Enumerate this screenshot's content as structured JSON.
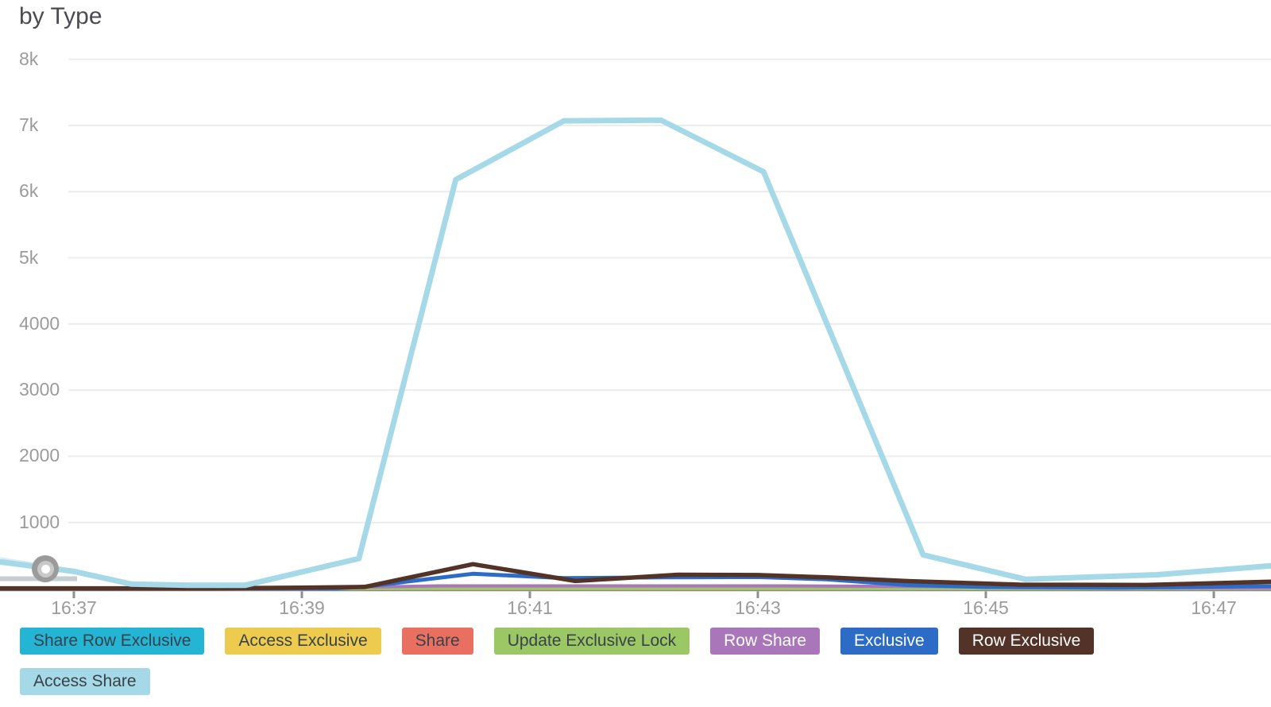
{
  "title": "by Type",
  "ui": {
    "grid_color": "#ececec",
    "axis_color": "#85878a",
    "tick_color": "#8f8f8f",
    "label_color": "#9b9b9b",
    "title_color": "#4a4a52",
    "marker_ring_color": "#9b9b9b",
    "marker_mid_color": "#c9c9c9",
    "marker_center_color": "#ffffff",
    "lead_in_line": "#d3ecf5",
    "lead_in_track": "#c7ced2"
  },
  "legend": {
    "rows": [
      [
        {
          "label": "Share Row Exclusive",
          "slug": "share-row-exclusive",
          "bg": "#24b4d4",
          "fg": "#39424a"
        },
        {
          "label": "Access Exclusive",
          "slug": "access-exclusive",
          "bg": "#edcb4f",
          "fg": "#39424a"
        },
        {
          "label": "Share",
          "slug": "share",
          "bg": "#e97061",
          "fg": "#39424a"
        },
        {
          "label": "Update Exclusive Lock",
          "slug": "update-exclusive-lock",
          "bg": "#9cc765",
          "fg": "#39424a"
        },
        {
          "label": "Row Share",
          "slug": "row-share",
          "bg": "#a977b9",
          "fg": "#ffffff"
        },
        {
          "label": "Exclusive",
          "slug": "exclusive",
          "bg": "#2c6cc6",
          "fg": "#ffffff"
        },
        {
          "label": "Row Exclusive",
          "slug": "row-exclusive",
          "bg": "#533327",
          "fg": "#ffffff"
        }
      ],
      [
        {
          "label": "Access Share",
          "slug": "access-share",
          "bg": "#a6d9e8",
          "fg": "#39424a"
        }
      ]
    ]
  },
  "chart_data": {
    "type": "line",
    "title": "by Type",
    "grid": true,
    "legend_position": "bottom",
    "x_axis": {
      "unit": "time (HH:MM)",
      "range": [
        "16:36:20",
        "16:47:30"
      ],
      "ticks": [
        {
          "label": "16:37",
          "minute": 37
        },
        {
          "label": "16:39",
          "minute": 39
        },
        {
          "label": "16:41",
          "minute": 41
        },
        {
          "label": "16:43",
          "minute": 43
        },
        {
          "label": "16:45",
          "minute": 45
        },
        {
          "label": "16:47",
          "minute": 47
        }
      ]
    },
    "y_axis": {
      "range": [
        0,
        8000
      ],
      "ticks": [
        {
          "label": "8k",
          "value": 8000
        },
        {
          "label": "7k",
          "value": 7000
        },
        {
          "label": "6k",
          "value": 6000
        },
        {
          "label": "5k",
          "value": 5000
        },
        {
          "label": "4000",
          "value": 4000
        },
        {
          "label": "3000",
          "value": 3000
        },
        {
          "label": "2000",
          "value": 2000
        },
        {
          "label": "1000",
          "value": 1000
        }
      ]
    },
    "x_point_format": "decimal minutes after 16:00 (e.g. 40.5 = 16:40:30)",
    "series": [
      {
        "name": "Share Row Exclusive",
        "slug": "share-row-exclusive",
        "color": "#24b4d4",
        "stroke": 4,
        "points": [
          [
            36.35,
            3
          ],
          [
            47.5,
            3
          ]
        ]
      },
      {
        "name": "Access Exclusive",
        "slug": "access-exclusive",
        "color": "#edcb4f",
        "stroke": 4,
        "points": [
          [
            36.35,
            3
          ],
          [
            47.5,
            3
          ]
        ]
      },
      {
        "name": "Share",
        "slug": "share",
        "color": "#e97061",
        "stroke": 4,
        "points": [
          [
            36.35,
            3
          ],
          [
            47.5,
            3
          ]
        ]
      },
      {
        "name": "Update Exclusive Lock",
        "slug": "update-exclusive-lock",
        "color": "#9cc765",
        "stroke": 4,
        "points": [
          [
            36.35,
            3
          ],
          [
            47.5,
            3
          ]
        ]
      },
      {
        "name": "Row Share",
        "slug": "row-share",
        "color": "#a977b9",
        "stroke": 4,
        "points": [
          [
            36.35,
            0
          ],
          [
            38.9,
            2
          ],
          [
            39.6,
            25
          ],
          [
            40.2,
            42
          ],
          [
            43.2,
            42
          ],
          [
            44.6,
            30
          ],
          [
            45.3,
            15
          ],
          [
            47.5,
            10
          ]
        ]
      },
      {
        "name": "Exclusive",
        "slug": "exclusive",
        "color": "#2c6cc6",
        "stroke": 5,
        "points": [
          [
            36.35,
            2
          ],
          [
            39.3,
            5
          ],
          [
            39.55,
            30
          ],
          [
            40.5,
            225
          ],
          [
            41.3,
            160
          ],
          [
            42.2,
            170
          ],
          [
            43.0,
            175
          ],
          [
            43.6,
            140
          ],
          [
            44.3,
            55
          ],
          [
            45.0,
            25
          ],
          [
            46.2,
            15
          ],
          [
            47.5,
            40
          ]
        ]
      },
      {
        "name": "Row Exclusive",
        "slug": "row-exclusive",
        "color": "#533327",
        "stroke": 5.5,
        "points": [
          [
            36.35,
            5
          ],
          [
            38.2,
            5
          ],
          [
            39.0,
            15
          ],
          [
            39.55,
            25
          ],
          [
            40.5,
            370
          ],
          [
            41.4,
            115
          ],
          [
            42.3,
            210
          ],
          [
            43.0,
            205
          ],
          [
            43.6,
            170
          ],
          [
            44.3,
            115
          ],
          [
            45.3,
            60
          ],
          [
            46.4,
            55
          ],
          [
            47.5,
            105
          ]
        ]
      },
      {
        "name": "Access Share",
        "slug": "access-share",
        "color": "#a6d9e8",
        "stroke": 7,
        "points": [
          [
            36.35,
            405
          ],
          [
            37.0,
            260
          ],
          [
            37.5,
            70
          ],
          [
            38.0,
            50
          ],
          [
            38.5,
            50
          ],
          [
            39.5,
            455
          ],
          [
            40.35,
            6180
          ],
          [
            41.3,
            7070
          ],
          [
            42.15,
            7080
          ],
          [
            43.05,
            6300
          ],
          [
            44.45,
            510
          ],
          [
            45.35,
            140
          ],
          [
            46.5,
            210
          ],
          [
            47.5,
            345
          ]
        ]
      }
    ]
  }
}
